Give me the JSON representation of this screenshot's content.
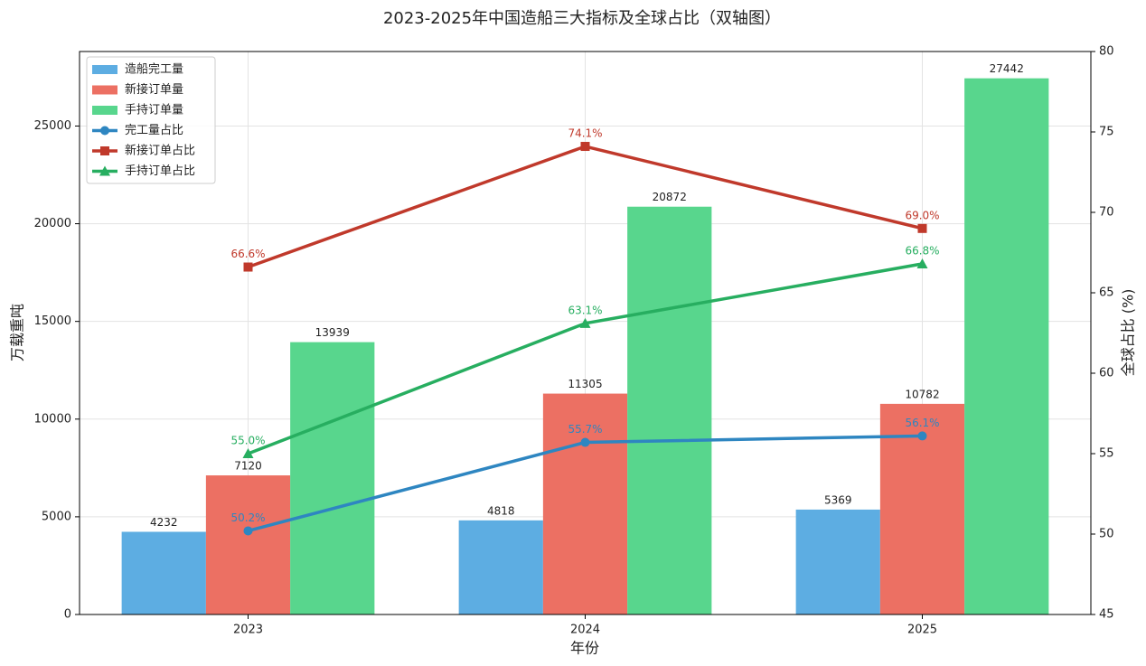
{
  "chart_data": {
    "type": "combo",
    "title": "2023-2025年中国造船三大指标及全球占比（双轴图）",
    "xlabel": "年份",
    "ylabel": "万载重吨",
    "y2label": "全球占比 (%)",
    "categories": [
      "2023",
      "2024",
      "2025"
    ],
    "ylim": [
      0,
      28814
    ],
    "yticks": [
      0,
      5000,
      10000,
      15000,
      20000,
      25000
    ],
    "y2lim": [
      45,
      80
    ],
    "y2ticks": [
      45,
      50,
      55,
      60,
      65,
      70,
      75,
      80
    ],
    "grid": true,
    "legend": "upper-left",
    "series": [
      {
        "name": "造船完工量",
        "type": "bar",
        "color": "#5dade2",
        "values": [
          4232,
          4818,
          5369
        ]
      },
      {
        "name": "新接订单量",
        "type": "bar",
        "color": "#ec7063",
        "values": [
          7120,
          11305,
          10782
        ]
      },
      {
        "name": "手持订单量",
        "type": "bar",
        "color": "#58d68d",
        "values": [
          13939,
          20872,
          27442
        ]
      },
      {
        "name": "完工量占比",
        "type": "line",
        "axis": "y2",
        "marker": "circle",
        "color": "#2e86c1",
        "values": [
          50.2,
          55.7,
          56.1
        ],
        "value_labels": [
          "50.2%",
          "55.7%",
          "56.1%"
        ]
      },
      {
        "name": "新接订单占比",
        "type": "line",
        "axis": "y2",
        "marker": "square",
        "color": "#c0392b",
        "values": [
          66.6,
          74.1,
          69.0
        ],
        "value_labels": [
          "66.6%",
          "74.1%",
          "69.0%"
        ]
      },
      {
        "name": "手持订单占比",
        "type": "line",
        "axis": "y2",
        "marker": "triangle",
        "color": "#27ae60",
        "values": [
          55.0,
          63.1,
          66.8
        ],
        "value_labels": [
          "55.0%",
          "63.1%",
          "66.8%"
        ]
      }
    ]
  }
}
